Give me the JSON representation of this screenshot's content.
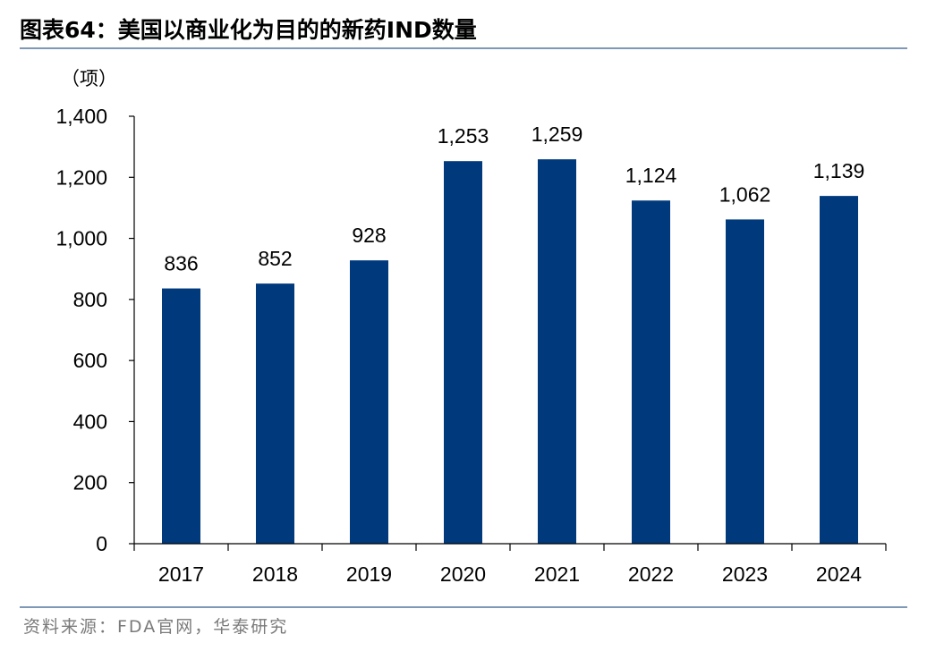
{
  "title": "图表64：美国以商业化为目的的新药IND数量",
  "unit_label": "（项）",
  "source": "资料来源：FDA官网，华泰研究",
  "colors": {
    "bar": "#003a7d",
    "rule": "#7f98b6",
    "axis": "#000000"
  },
  "chart_data": {
    "type": "bar",
    "title": "美国以商业化为目的的新药IND数量",
    "xlabel": "",
    "ylabel": "（项）",
    "categories": [
      "2017",
      "2018",
      "2019",
      "2020",
      "2021",
      "2022",
      "2023",
      "2024"
    ],
    "values": [
      836,
      852,
      928,
      1253,
      1259,
      1124,
      1062,
      1139
    ],
    "value_labels": [
      "836",
      "852",
      "928",
      "1,253",
      "1,259",
      "1,124",
      "1,062",
      "1,139"
    ],
    "ylim": [
      0,
      1400
    ],
    "yticks": [
      0,
      200,
      400,
      600,
      800,
      1000,
      1200,
      1400
    ],
    "ytick_labels": [
      "0",
      "200",
      "400",
      "600",
      "800",
      "1,000",
      "1,200",
      "1,400"
    ],
    "grid": false,
    "legend": "none"
  }
}
